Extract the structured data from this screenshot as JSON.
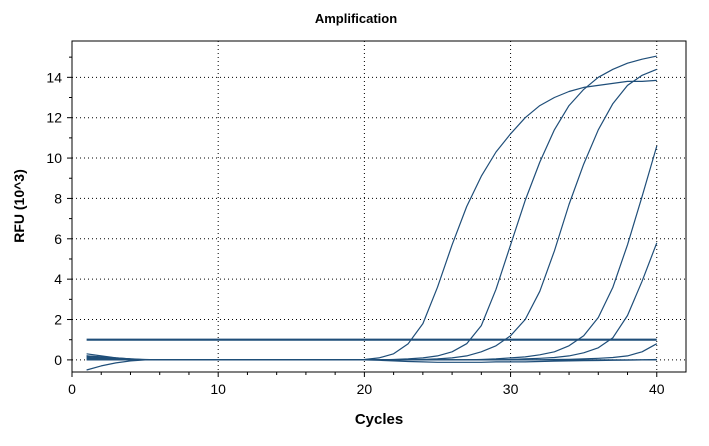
{
  "chart_data": {
    "type": "line",
    "title": "Amplification",
    "xlabel": "Cycles",
    "ylabel": "RFU (10^3)",
    "xlim": [
      0,
      42
    ],
    "ylim": [
      -0.6,
      15.8
    ],
    "xticks": [
      0,
      10,
      20,
      30,
      40
    ],
    "yticks": [
      0,
      2,
      4,
      6,
      8,
      10,
      12,
      14
    ],
    "grid": true,
    "threshold": 1.0,
    "line_color": "#1f4e79",
    "x": [
      1,
      2,
      3,
      4,
      5,
      6,
      7,
      8,
      9,
      10,
      11,
      12,
      13,
      14,
      15,
      16,
      17,
      18,
      19,
      20,
      21,
      22,
      23,
      24,
      25,
      26,
      27,
      28,
      29,
      30,
      31,
      32,
      33,
      34,
      35,
      36,
      37,
      38,
      39,
      40
    ],
    "series": [
      {
        "values": [
          -0.5,
          -0.3,
          -0.15,
          -0.05,
          0.0,
          0.0,
          0.0,
          0.0,
          0.0,
          0.0,
          0.0,
          0.0,
          0.0,
          0.0,
          0.0,
          0.0,
          0.0,
          0.0,
          0.0,
          0.02,
          0.1,
          0.3,
          0.8,
          1.8,
          3.6,
          5.7,
          7.6,
          9.1,
          10.3,
          11.2,
          12.0,
          12.6,
          13.0,
          13.3,
          13.5,
          13.6,
          13.7,
          13.8,
          13.8,
          13.85
        ]
      },
      {
        "values": [
          0.3,
          0.2,
          0.1,
          0.05,
          0.0,
          0.0,
          0.0,
          0.0,
          0.0,
          0.0,
          0.0,
          0.0,
          0.0,
          0.0,
          0.0,
          0.0,
          0.0,
          0.0,
          0.0,
          0.0,
          0.0,
          0.02,
          0.05,
          0.1,
          0.2,
          0.4,
          0.8,
          1.7,
          3.5,
          5.7,
          7.9,
          9.8,
          11.4,
          12.6,
          13.4,
          14.0,
          14.4,
          14.7,
          14.9,
          15.05
        ]
      },
      {
        "values": [
          0.2,
          0.1,
          0.05,
          0.0,
          0.0,
          0.0,
          0.0,
          0.0,
          0.0,
          0.0,
          0.0,
          0.0,
          0.0,
          0.0,
          0.0,
          0.0,
          0.0,
          0.0,
          0.0,
          0.0,
          0.0,
          0.0,
          0.0,
          0.02,
          0.05,
          0.1,
          0.2,
          0.4,
          0.7,
          1.2,
          2.0,
          3.4,
          5.4,
          7.7,
          9.7,
          11.4,
          12.7,
          13.6,
          14.1,
          14.4
        ]
      },
      {
        "values": [
          0.1,
          0.05,
          0.02,
          0.0,
          0.0,
          0.0,
          0.0,
          0.0,
          0.0,
          0.0,
          0.0,
          0.0,
          0.0,
          0.0,
          0.0,
          0.0,
          0.0,
          0.0,
          0.0,
          0.0,
          0.0,
          0.0,
          0.0,
          0.0,
          0.0,
          0.0,
          0.0,
          0.02,
          0.05,
          0.1,
          0.15,
          0.25,
          0.4,
          0.7,
          1.2,
          2.1,
          3.6,
          5.7,
          8.1,
          10.6
        ]
      },
      {
        "values": [
          0.15,
          0.1,
          0.05,
          0.02,
          0.0,
          0.0,
          0.0,
          0.0,
          0.0,
          0.0,
          0.0,
          0.0,
          0.0,
          0.0,
          0.0,
          0.0,
          0.0,
          0.0,
          0.0,
          0.0,
          0.0,
          0.0,
          0.0,
          0.0,
          0.0,
          0.0,
          0.0,
          0.0,
          0.0,
          0.02,
          0.05,
          0.08,
          0.12,
          0.2,
          0.35,
          0.6,
          1.1,
          2.2,
          3.9,
          5.8
        ]
      },
      {
        "values": [
          0.05,
          0.05,
          0.03,
          0.02,
          0.0,
          0.0,
          0.0,
          0.0,
          0.0,
          0.0,
          0.0,
          0.0,
          0.0,
          0.0,
          0.0,
          0.0,
          0.0,
          0.0,
          0.0,
          0.0,
          0.0,
          0.0,
          0.0,
          0.0,
          0.0,
          0.0,
          0.0,
          0.0,
          0.0,
          0.0,
          0.0,
          0.0,
          0.02,
          0.03,
          0.05,
          0.08,
          0.12,
          0.2,
          0.4,
          0.8
        ]
      },
      {
        "values": [
          0.0,
          0.0,
          0.0,
          0.0,
          0.0,
          0.0,
          0.0,
          0.0,
          0.0,
          0.0,
          0.0,
          0.0,
          0.0,
          0.0,
          0.0,
          0.0,
          0.0,
          0.0,
          0.0,
          0.0,
          0.0,
          0.0,
          0.0,
          0.0,
          0.0,
          0.0,
          0.0,
          0.0,
          0.0,
          0.0,
          0.0,
          0.0,
          0.0,
          0.0,
          0.0,
          0.0,
          0.0,
          0.0,
          0.0,
          0.0
        ]
      },
      {
        "values": [
          0.2,
          0.15,
          0.1,
          0.05,
          0.02,
          0.0,
          0.0,
          0.0,
          0.0,
          0.0,
          0.0,
          0.0,
          0.0,
          0.0,
          0.0,
          0.0,
          0.0,
          0.0,
          0.0,
          0.0,
          -0.02,
          -0.05,
          -0.08,
          -0.1,
          -0.12,
          -0.12,
          -0.12,
          -0.12,
          -0.1,
          -0.1,
          -0.1,
          -0.08,
          -0.06,
          -0.05,
          -0.04,
          -0.03,
          -0.02,
          -0.01,
          0.0,
          0.02
        ]
      }
    ]
  }
}
